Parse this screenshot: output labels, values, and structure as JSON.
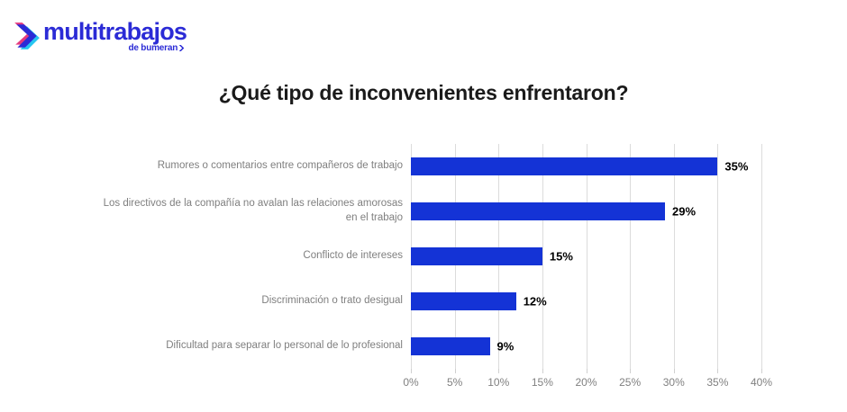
{
  "logo": {
    "brand": "multitrabajos",
    "sub": "de bumeran"
  },
  "title": "¿Qué tipo de inconvenientes enfrentaron?",
  "colors": {
    "bar": "#1433d6",
    "grid": "#dcdcdc",
    "category_label": "#7f7f7f",
    "axis_label": "#808080",
    "value_label": "#000000",
    "logo_blue": "#2b2bd6",
    "logo_cyan": "#26c6f0",
    "logo_magenta": "#e5397e"
  },
  "chart_data": {
    "type": "bar",
    "orientation": "horizontal",
    "title": "¿Qué tipo de inconvenientes enfrentaron?",
    "categories": [
      "Rumores o comentarios entre compañeros de trabajo",
      "Los directivos de la compañía no avalan las relaciones amorosas en el trabajo",
      "Conflicto de intereses",
      "Discriminación o trato desigual",
      "Dificultad para separar lo personal de lo profesional"
    ],
    "values": [
      35,
      29,
      15,
      12,
      9
    ],
    "value_labels": [
      "35%",
      "29%",
      "15%",
      "12%",
      "9%"
    ],
    "x_ticks": [
      "0%",
      "5%",
      "10%",
      "15%",
      "20%",
      "25%",
      "30%",
      "35%",
      "40%"
    ],
    "xlim": [
      0,
      40
    ],
    "grid": true,
    "legend": false,
    "xlabel": "",
    "ylabel": ""
  }
}
